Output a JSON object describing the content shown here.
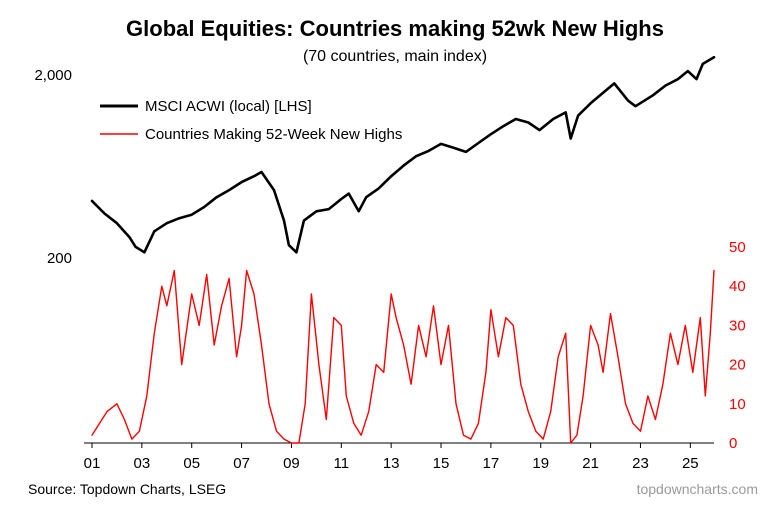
{
  "chart_data": {
    "type": "line",
    "title": "Global Equities: Countries making 52wk New Highs",
    "subtitle": "(70 countries, main index)",
    "source": "Source: Topdown Charts, LSEG",
    "brand": "topdowncharts.com",
    "x_ticks": [
      "01",
      "03",
      "05",
      "07",
      "09",
      "11",
      "13",
      "15",
      "17",
      "19",
      "21",
      "23",
      "25"
    ],
    "x_range": [
      2001.0,
      2025.95
    ],
    "left_axis": {
      "scale": "log",
      "ticks": [
        "2,000",
        "200"
      ]
    },
    "right_axis": {
      "scale": "linear",
      "ylim": [
        0,
        50
      ],
      "ticks": [
        "50",
        "40",
        "30",
        "20",
        "10",
        "0"
      ]
    },
    "legend_position": "top-left",
    "series": [
      {
        "name": "MSCI ACWI (local) [LHS]",
        "color": "#000000",
        "axis": "left",
        "x": [
          2001.0,
          2001.5,
          2002.0,
          2002.5,
          2002.75,
          2003.1,
          2003.5,
          2004.0,
          2004.5,
          2005.0,
          2005.5,
          2006.0,
          2006.5,
          2007.0,
          2007.5,
          2007.8,
          2008.3,
          2008.7,
          2008.9,
          2009.2,
          2009.5,
          2010.0,
          2010.5,
          2011.0,
          2011.3,
          2011.7,
          2012.0,
          2012.5,
          2013.0,
          2013.5,
          2014.0,
          2014.5,
          2015.0,
          2015.5,
          2016.0,
          2016.5,
          2017.0,
          2017.5,
          2018.0,
          2018.5,
          2018.95,
          2019.5,
          2020.0,
          2020.2,
          2020.5,
          2021.0,
          2021.5,
          2021.95,
          2022.5,
          2022.8,
          2023.5,
          2024.0,
          2024.5,
          2024.9,
          2025.25,
          2025.5,
          2025.95
        ],
        "values": [
          410,
          350,
          310,
          260,
          230,
          215,
          280,
          310,
          330,
          345,
          380,
          430,
          470,
          520,
          560,
          590,
          470,
          320,
          235,
          215,
          320,
          360,
          370,
          420,
          450,
          360,
          430,
          480,
          560,
          640,
          720,
          770,
          840,
          800,
          760,
          850,
          950,
          1050,
          1150,
          1100,
          1000,
          1150,
          1250,
          900,
          1200,
          1400,
          1600,
          1800,
          1450,
          1350,
          1550,
          1750,
          1900,
          2100,
          1900,
          2300,
          2500
        ]
      },
      {
        "name": "Countries Making 52-Week New Highs",
        "color": "#ff0000",
        "axis": "right",
        "x": [
          2001.0,
          2001.3,
          2001.6,
          2002.0,
          2002.3,
          2002.6,
          2002.9,
          2003.2,
          2003.5,
          2003.8,
          2004.0,
          2004.3,
          2004.6,
          2005.0,
          2005.3,
          2005.6,
          2005.9,
          2006.2,
          2006.5,
          2006.8,
          2007.0,
          2007.2,
          2007.5,
          2007.8,
          2008.1,
          2008.4,
          2008.7,
          2009.0,
          2009.3,
          2009.55,
          2009.8,
          2010.1,
          2010.4,
          2010.7,
          2011.0,
          2011.2,
          2011.5,
          2011.8,
          2012.1,
          2012.4,
          2012.7,
          2013.0,
          2013.2,
          2013.5,
          2013.8,
          2014.1,
          2014.4,
          2014.7,
          2015.0,
          2015.3,
          2015.6,
          2015.9,
          2016.2,
          2016.5,
          2016.8,
          2017.0,
          2017.3,
          2017.6,
          2017.9,
          2018.2,
          2018.5,
          2018.8,
          2019.1,
          2019.4,
          2019.7,
          2020.0,
          2020.2,
          2020.45,
          2020.7,
          2021.0,
          2021.3,
          2021.5,
          2021.8,
          2022.1,
          2022.4,
          2022.7,
          2023.0,
          2023.3,
          2023.6,
          2023.9,
          2024.2,
          2024.5,
          2024.8,
          2025.1,
          2025.4,
          2025.6,
          2025.8,
          2025.95
        ],
        "values": [
          2,
          5,
          8,
          10,
          6,
          1,
          3,
          12,
          28,
          40,
          35,
          44,
          20,
          38,
          30,
          43,
          25,
          35,
          42,
          22,
          30,
          44,
          38,
          25,
          10,
          3,
          1,
          0,
          0,
          10,
          38,
          20,
          6,
          32,
          30,
          12,
          5,
          2,
          8,
          20,
          18,
          38,
          32,
          25,
          15,
          30,
          22,
          35,
          20,
          30,
          10,
          2,
          1,
          5,
          18,
          34,
          22,
          32,
          30,
          15,
          8,
          3,
          1,
          8,
          22,
          28,
          0,
          2,
          12,
          30,
          25,
          18,
          33,
          22,
          10,
          5,
          3,
          12,
          6,
          15,
          28,
          20,
          30,
          18,
          32,
          12,
          28,
          44
        ]
      }
    ]
  }
}
